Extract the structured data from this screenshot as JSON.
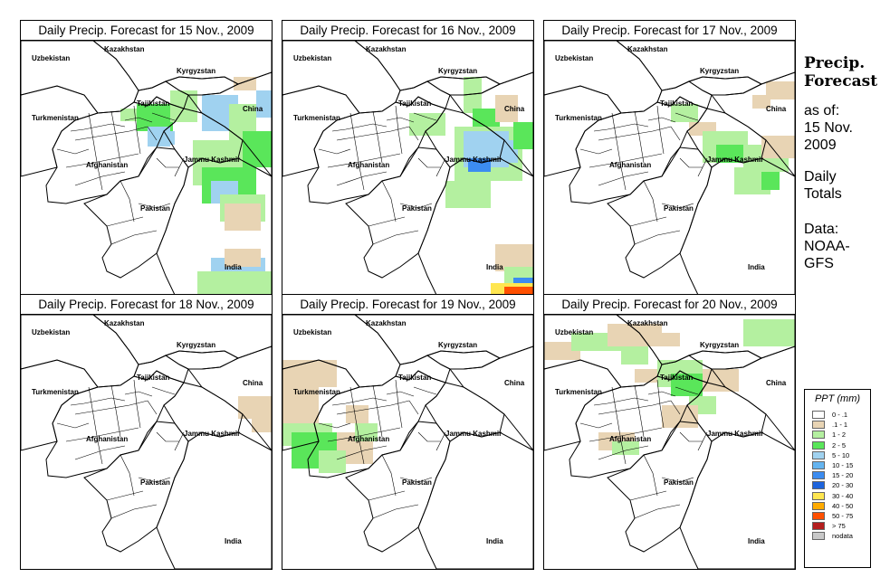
{
  "panels": [
    {
      "title": "Daily Precip. Forecast for  15 Nov., 2009",
      "date": "15 Nov., 2009"
    },
    {
      "title": "Daily Precip. Forecast for  16 Nov., 2009",
      "date": "16 Nov., 2009"
    },
    {
      "title": "Daily Precip. Forecast for  17 Nov., 2009",
      "date": "17 Nov., 2009"
    },
    {
      "title": "Daily Precip. Forecast for  18 Nov., 2009",
      "date": "18 Nov., 2009"
    },
    {
      "title": "Daily Precip. Forecast for  19 Nov., 2009",
      "date": "19 Nov., 2009"
    },
    {
      "title": "Daily Precip. Forecast for  20 Nov., 2009",
      "date": "20 Nov., 2009"
    }
  ],
  "map_labels": {
    "uzbekistan": "Uzbekistan",
    "kazakhstan": "Kazakhstan",
    "kyrgyzstan": "Kyrgyzstan",
    "tajikistan": "Tajikistan",
    "china": "China",
    "turkmenistan": "Turkmenistan",
    "afghanistan": "Afghanistan",
    "jammu_kashmir": "Jammu Kashmir",
    "pakistan": "Pakistan",
    "india": "India"
  },
  "side": {
    "title_line1": "Precip.",
    "title_line2": "Forecast",
    "asof_line1": "as of:",
    "asof_line2": "15 Nov.",
    "asof_line3": "2009",
    "daily_line1": "Daily",
    "daily_line2": "Totals",
    "data_line1": "Data:",
    "data_line2": "NOAA-",
    "data_line3": "GFS"
  },
  "legend": {
    "title": "PPT (mm)",
    "items": [
      {
        "label": "0 - .1",
        "color": "#ffffff"
      },
      {
        "label": ".1 - 1",
        "color": "#e8d4b4"
      },
      {
        "label": "1 - 2",
        "color": "#b4f0a0"
      },
      {
        "label": "2 - 5",
        "color": "#5ae65a"
      },
      {
        "label": "5 - 10",
        "color": "#a0d2f0"
      },
      {
        "label": "10 - 15",
        "color": "#64b4f0"
      },
      {
        "label": "15 - 20",
        "color": "#3c8cf0"
      },
      {
        "label": "20 - 30",
        "color": "#1e64dc"
      },
      {
        "label": "30 - 40",
        "color": "#ffe650"
      },
      {
        "label": "40 - 50",
        "color": "#ffaa00"
      },
      {
        "label": "50 - 75",
        "color": "#ff5000"
      },
      {
        "label": "> 75",
        "color": "#b41e1e"
      },
      {
        "label": "nodata",
        "color": "#c8c8c8"
      }
    ]
  },
  "palette": {
    "tan": "#e8d4b4",
    "lightgreen": "#b4f0a0",
    "green": "#5ae65a",
    "lightblue": "#a0d2f0",
    "blue": "#64b4f0",
    "medblue": "#3c8cf0",
    "darkblue": "#1e64dc",
    "yellow": "#ffe650",
    "orange": "#ffaa00",
    "redorange": "#ff5000",
    "red": "#b41e1e"
  }
}
